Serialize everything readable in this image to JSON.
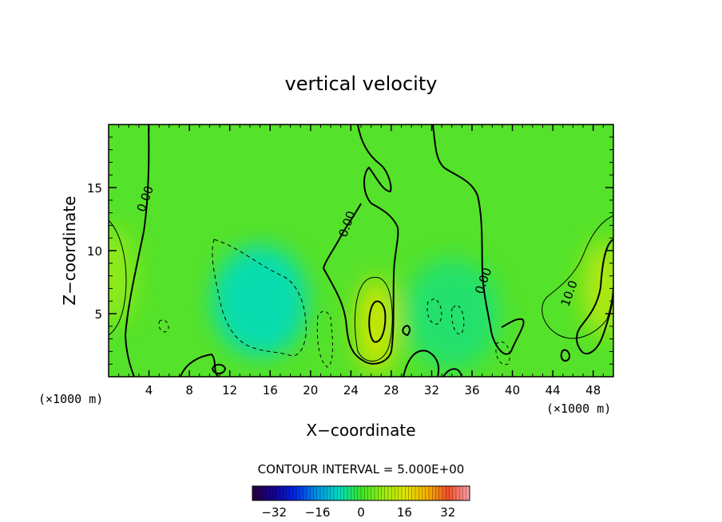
{
  "chart_data": {
    "type": "heatmap",
    "title": "vertical velocity",
    "xlabel": "X−coordinate",
    "ylabel": "Z−coordinate",
    "x_unit_label_left": "(×1000 m)",
    "x_unit_label_right": "(×1000 m)",
    "xlim": [
      0,
      50
    ],
    "ylim": [
      0,
      20
    ],
    "x_ticks": [
      "4",
      "8",
      "12",
      "16",
      "20",
      "24",
      "28",
      "32",
      "36",
      "40",
      "44",
      "48"
    ],
    "x_tick_values": [
      4,
      8,
      12,
      16,
      20,
      24,
      28,
      32,
      36,
      40,
      44,
      48
    ],
    "y_ticks": [
      "5",
      "10",
      "15"
    ],
    "y_tick_values": [
      5,
      10,
      15
    ],
    "contour_interval_label": "CONTOUR INTERVAL = 5.000E+00",
    "contour_interval": 5.0,
    "contour_labels": [
      {
        "text": "0.00",
        "x": 4,
        "z": 14
      },
      {
        "text": "0.00",
        "x": 24,
        "z": 12
      },
      {
        "text": "0.00",
        "x": 37.5,
        "z": 7.5
      },
      {
        "text": "10.0",
        "x": 46,
        "z": 6.5
      }
    ],
    "colorbar": {
      "range": [
        -40,
        40
      ],
      "tick_labels": [
        "−32",
        "−16",
        "0",
        "16",
        "32"
      ],
      "tick_values": [
        -32,
        -16,
        0,
        16,
        32
      ]
    },
    "features": [
      {
        "type": "updraft",
        "x": 26.5,
        "z": 4,
        "value": 15
      },
      {
        "type": "updraft",
        "x": 49,
        "z": 7,
        "value": 12
      },
      {
        "type": "updraft",
        "x": 0.5,
        "z": 8,
        "value": 8
      },
      {
        "type": "downdraft",
        "x": 15,
        "z": 6,
        "value": -8
      },
      {
        "type": "downdraft",
        "x": 34,
        "z": 5,
        "value": -4
      }
    ]
  }
}
